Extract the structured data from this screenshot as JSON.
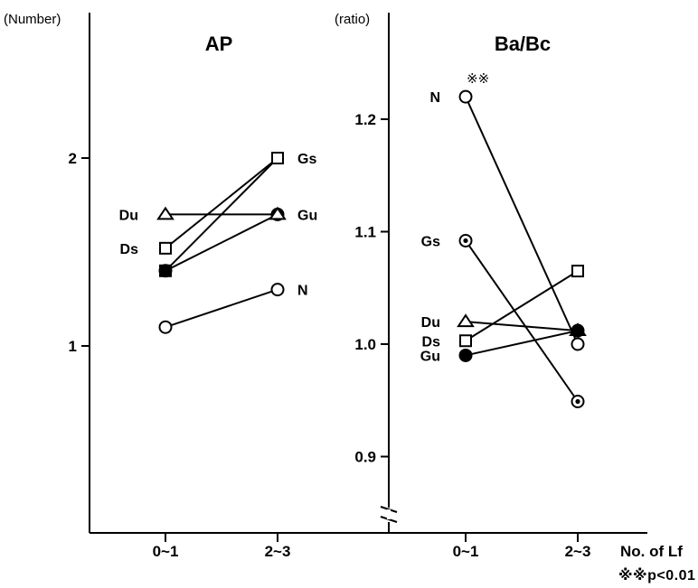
{
  "chart_data": [
    {
      "type": "line",
      "title": "AP",
      "ylabel": "(Number)",
      "categories": [
        "0~1",
        "2~3"
      ],
      "ylim": [
        0.5,
        2.8
      ],
      "yticks": [
        1,
        2
      ],
      "ytick_labels": [
        "1",
        "2"
      ],
      "series": [
        {
          "name": "Gs",
          "values": [
            1.4,
            2.0
          ],
          "marker": "square-dot"
        },
        {
          "name": "Gu",
          "values": [
            1.4,
            1.7
          ],
          "marker": "filled-circle"
        },
        {
          "name": "Ds",
          "values": [
            1.52,
            2.0
          ],
          "marker": "open-square"
        },
        {
          "name": "Du",
          "values": [
            1.7,
            1.7
          ],
          "marker": "open-triangle"
        },
        {
          "name": "N",
          "values": [
            1.1,
            1.3
          ],
          "marker": "open-circle"
        }
      ],
      "point_labels": {
        "left": [
          "Du",
          "Ds"
        ],
        "right": [
          "Gs",
          "Gu",
          "N"
        ]
      }
    },
    {
      "type": "line",
      "title": "Ba/Bc",
      "ylabel": "(ratio)",
      "categories": [
        "0~1",
        "2~3"
      ],
      "ylim": [
        0.85,
        1.3
      ],
      "y_break": true,
      "yticks": [
        0.9,
        1.0,
        1.1,
        1.2
      ],
      "ytick_labels": [
        "0.9",
        "1.0",
        "1.1",
        "1.2"
      ],
      "series": [
        {
          "name": "N",
          "values": [
            1.22,
            1.0
          ],
          "marker": "open-circle"
        },
        {
          "name": "Gs",
          "values": [
            1.092,
            0.949
          ],
          "marker": "circle-dot"
        },
        {
          "name": "Du",
          "values": [
            1.02,
            1.012
          ],
          "marker": "open-triangle"
        },
        {
          "name": "Ds",
          "values": [
            1.003,
            1.065
          ],
          "marker": "open-square"
        },
        {
          "name": "Gu",
          "values": [
            0.99,
            1.012
          ],
          "marker": "filled-circle"
        }
      ],
      "point_labels": {
        "left": [
          "N",
          "Gs",
          "Du",
          "Ds",
          "Gu"
        ],
        "right": []
      },
      "annotation": "※※"
    }
  ],
  "xlabel": "No. of Lf",
  "footnote": "※※p<0.01"
}
